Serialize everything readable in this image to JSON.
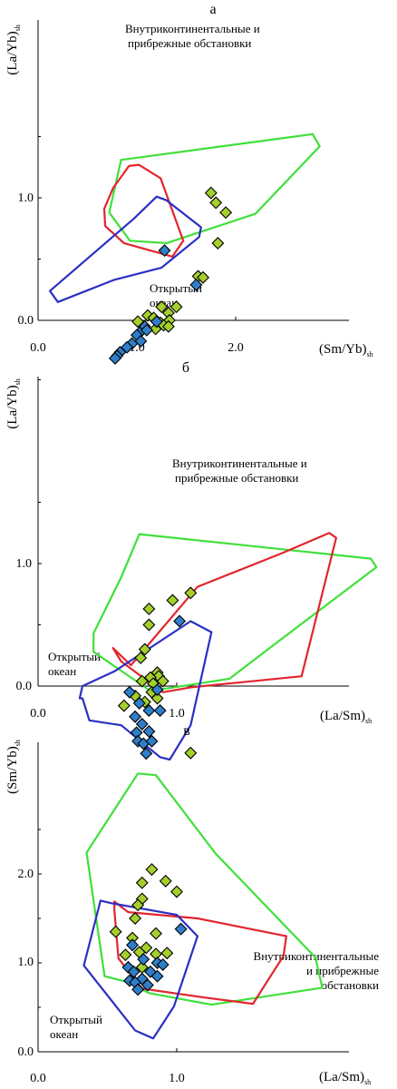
{
  "colors": {
    "axis": "#000000",
    "red": "#e0262e",
    "green": "#3fe03a",
    "blue": "#2b2fc4",
    "marker_green": "#a4cf2c",
    "marker_blue": "#2f7ec9",
    "marker_stroke": "#000000"
  },
  "chart_data": [
    {
      "type": "scatter",
      "panel_label": "а",
      "xlabel": "(Sm/Yb)",
      "xlabel_sub": "sh",
      "ylabel": "(La/Yb)",
      "ylabel_sub": "sh",
      "x_ticks": [
        "0.0",
        "1.0",
        "2.0"
      ],
      "y_ticks": [
        "0.0",
        "1.0"
      ],
      "annotations": {
        "region_top": [
          "Внутриконтинентальные и",
          "прибрежные обстановки"
        ],
        "region_bottom": [
          "Открытый",
          "океан"
        ]
      },
      "fields": {
        "green": [
          [
            0.72,
            0.88
          ],
          [
            0.93,
            0.65
          ],
          [
            1.3,
            0.63
          ],
          [
            2.2,
            0.87
          ],
          [
            2.85,
            1.42
          ],
          [
            2.78,
            1.52
          ],
          [
            0.84,
            1.31
          ]
        ],
        "red": [
          [
            0.92,
            1.26
          ],
          [
            1.02,
            1.27
          ],
          [
            1.24,
            1.16
          ],
          [
            1.47,
            0.65
          ],
          [
            1.36,
            0.52
          ],
          [
            0.87,
            0.63
          ],
          [
            0.68,
            0.77
          ],
          [
            0.67,
            0.91
          ],
          [
            0.76,
            1.08
          ]
        ],
        "blue": [
          [
            0.12,
            0.24
          ],
          [
            0.2,
            0.15
          ],
          [
            0.77,
            0.33
          ],
          [
            1.25,
            0.43
          ],
          [
            1.63,
            0.68
          ],
          [
            1.65,
            0.76
          ],
          [
            1.3,
            0.98
          ],
          [
            1.2,
            1.01
          ],
          [
            0.97,
            0.83
          ]
        ]
      },
      "series": [
        {
          "marker": "diamond",
          "color": "#a4cf2c",
          "points": [
            [
              1.75,
              1.04
            ],
            [
              1.8,
              0.96
            ],
            [
              1.9,
              0.88
            ],
            [
              1.82,
              0.63
            ],
            [
              1.62,
              0.36
            ],
            [
              1.67,
              0.35
            ],
            [
              1.4,
              0.11
            ],
            [
              1.25,
              0.11
            ],
            [
              1.32,
              0.06
            ],
            [
              1.11,
              0.04
            ],
            [
              1.17,
              0.02
            ],
            [
              1.33,
              0.0
            ],
            [
              1.19,
              -0.07
            ],
            [
              1.24,
              -0.02
            ],
            [
              1.27,
              -0.04
            ],
            [
              1.01,
              -0.01
            ],
            [
              1.32,
              -0.05
            ]
          ]
        },
        {
          "marker": "diamond",
          "color": "#2f7ec9",
          "points": [
            [
              1.28,
              0.57
            ],
            [
              1.6,
              0.29
            ],
            [
              1.2,
              -0.01
            ],
            [
              1.08,
              -0.05
            ],
            [
              1.03,
              -0.1
            ],
            [
              1.0,
              -0.12
            ],
            [
              1.04,
              -0.17
            ],
            [
              0.95,
              -0.19
            ],
            [
              0.9,
              -0.22
            ],
            [
              0.83,
              -0.26
            ],
            [
              0.8,
              -0.29
            ],
            [
              0.78,
              -0.31
            ],
            [
              1.1,
              -0.08
            ]
          ]
        }
      ]
    },
    {
      "type": "scatter",
      "panel_label": "б",
      "xlabel": "(La/Sm)",
      "xlabel_sub": "sh",
      "ylabel": "(La/Yb)",
      "ylabel_sub": "sh",
      "x_ticks": [
        "0.0",
        "1.0"
      ],
      "y_ticks": [
        "0.0",
        "1.0"
      ],
      "annotations": {
        "region_top": [
          "Внутриконтинентальные и",
          "прибрежные обстановки"
        ],
        "region_bottom": [
          "Открытый",
          "океан"
        ]
      },
      "fields": {
        "green": [
          [
            0.73,
            1.24
          ],
          [
            2.4,
            1.04
          ],
          [
            2.44,
            0.97
          ],
          [
            1.75,
            0.38
          ],
          [
            1.38,
            0.06
          ],
          [
            0.81,
            -0.04
          ],
          [
            0.4,
            0.28
          ],
          [
            0.4,
            0.43
          ],
          [
            0.6,
            0.89
          ]
        ],
        "red": [
          [
            0.54,
            0.31
          ],
          [
            0.6,
            0.2
          ],
          [
            0.9,
            -0.05
          ],
          [
            1.1,
            -0.01
          ],
          [
            1.9,
            0.08
          ],
          [
            2.15,
            1.21
          ],
          [
            2.1,
            1.25
          ],
          [
            1.77,
            1.09
          ],
          [
            1.15,
            0.81
          ],
          [
            0.67,
            0.17
          ]
        ],
        "blue": [
          [
            0.3,
            -0.1
          ],
          [
            0.32,
            0.0
          ],
          [
            0.55,
            0.12
          ],
          [
            1.1,
            0.53
          ],
          [
            1.25,
            0.44
          ],
          [
            1.1,
            -0.32
          ],
          [
            0.95,
            -0.6
          ],
          [
            0.88,
            -0.58
          ],
          [
            0.6,
            -0.32
          ],
          [
            0.37,
            -0.28
          ],
          [
            0.32,
            -0.1
          ]
        ]
      },
      "series": [
        {
          "marker": "diamond",
          "color": "#a4cf2c",
          "points": [
            [
              1.1,
              0.76
            ],
            [
              0.97,
              0.7
            ],
            [
              0.8,
              0.63
            ],
            [
              0.8,
              0.5
            ],
            [
              0.77,
              0.3
            ],
            [
              0.74,
              0.23
            ],
            [
              0.86,
              0.11
            ],
            [
              0.87,
              0.08
            ],
            [
              0.81,
              0.07
            ],
            [
              0.9,
              0.04
            ],
            [
              0.83,
              0.02
            ],
            [
              0.75,
              0.04
            ],
            [
              0.82,
              -0.05
            ],
            [
              0.7,
              -0.08
            ],
            [
              0.62,
              -0.16
            ],
            [
              0.77,
              -0.13
            ],
            [
              0.86,
              -0.1
            ]
          ]
        },
        {
          "marker": "diamond",
          "color": "#2f7ec9",
          "points": [
            [
              1.02,
              0.53
            ],
            [
              0.66,
              -0.05
            ],
            [
              0.73,
              -0.14
            ],
            [
              0.8,
              -0.2
            ],
            [
              0.88,
              -0.2
            ],
            [
              0.7,
              -0.25
            ],
            [
              0.75,
              -0.31
            ],
            [
              0.71,
              -0.38
            ],
            [
              0.8,
              -0.37
            ],
            [
              0.72,
              -0.45
            ],
            [
              0.76,
              -0.47
            ],
            [
              0.86,
              -0.03
            ],
            [
              0.78,
              -0.55
            ],
            [
              0.82,
              -0.45
            ]
          ]
        }
      ]
    },
    {
      "type": "scatter",
      "panel_label": "в",
      "xlabel": "(La/Sm)",
      "xlabel_sub": "sh",
      "ylabel": "(Sm/Yb)",
      "ylabel_sub": "sh",
      "x_ticks": [
        "0.0",
        "1.0"
      ],
      "y_ticks": [
        "0.0",
        "1.0",
        "2.0"
      ],
      "annotations": {
        "region_top": [
          "Внутриконтинентальные",
          "и прибрежные",
          "обстановки"
        ],
        "region_bottom": [
          "Открытый",
          "океан"
        ]
      },
      "fields": {
        "green": [
          [
            0.35,
            2.24
          ],
          [
            0.72,
            3.13
          ],
          [
            0.85,
            3.11
          ],
          [
            1.28,
            2.23
          ],
          [
            2.0,
            1.06
          ],
          [
            2.05,
            0.72
          ],
          [
            1.25,
            0.53
          ],
          [
            0.8,
            0.66
          ],
          [
            0.63,
            0.79
          ],
          [
            0.48,
            0.85
          ],
          [
            0.35,
            2.24
          ]
        ],
        "red": [
          [
            0.55,
            1.69
          ],
          [
            0.65,
            1.57
          ],
          [
            1.15,
            1.5
          ],
          [
            1.79,
            1.3
          ],
          [
            1.77,
            1.08
          ],
          [
            1.55,
            0.54
          ],
          [
            1.2,
            0.61
          ],
          [
            0.75,
            0.71
          ],
          [
            0.58,
            1.05
          ],
          [
            0.55,
            1.59
          ]
        ],
        "blue": [
          [
            0.45,
            1.7
          ],
          [
            0.53,
            1.67
          ],
          [
            1.0,
            1.54
          ],
          [
            1.15,
            1.3
          ],
          [
            0.98,
            0.51
          ],
          [
            0.83,
            0.15
          ],
          [
            0.7,
            0.24
          ],
          [
            0.33,
            0.97
          ],
          [
            0.45,
            1.7
          ]
        ]
      },
      "series": [
        {
          "marker": "diamond",
          "color": "#a4cf2c",
          "points": [
            [
              1.1,
              3.36
            ],
            [
              0.82,
              2.05
            ],
            [
              0.92,
              1.92
            ],
            [
              0.75,
              1.9
            ],
            [
              1.0,
              1.8
            ],
            [
              0.75,
              1.72
            ],
            [
              0.72,
              1.65
            ],
            [
              0.7,
              1.5
            ],
            [
              0.56,
              1.35
            ],
            [
              0.68,
              1.28
            ],
            [
              0.85,
              1.33
            ],
            [
              0.78,
              1.17
            ],
            [
              0.73,
              1.12
            ],
            [
              0.85,
              1.1
            ],
            [
              0.93,
              1.11
            ],
            [
              0.63,
              1.09
            ],
            [
              0.75,
              0.95
            ]
          ]
        },
        {
          "marker": "diamond",
          "color": "#2f7ec9",
          "points": [
            [
              1.03,
              1.38
            ],
            [
              0.68,
              1.2
            ],
            [
              0.76,
              1.04
            ],
            [
              0.86,
              1.0
            ],
            [
              0.9,
              0.98
            ],
            [
              0.65,
              0.95
            ],
            [
              0.69,
              0.9
            ],
            [
              0.81,
              0.9
            ],
            [
              0.75,
              0.82
            ],
            [
              0.66,
              0.8
            ],
            [
              0.7,
              0.78
            ],
            [
              0.79,
              0.75
            ],
            [
              0.72,
              0.7
            ],
            [
              0.86,
              0.85
            ]
          ]
        }
      ]
    }
  ]
}
